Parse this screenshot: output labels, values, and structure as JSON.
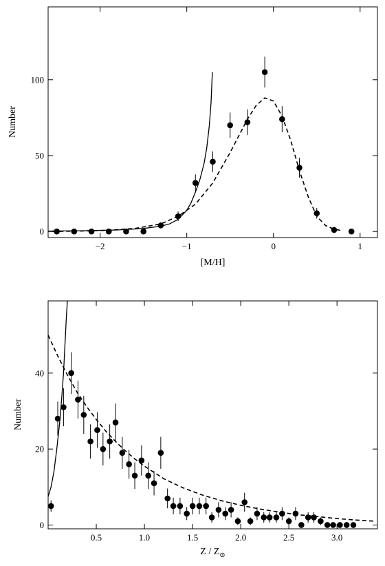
{
  "chart_data": [
    {
      "type": "scatter",
      "xlabel": "[M/H]",
      "ylabel": "Number",
      "xlim": [
        -2.6,
        1.2
      ],
      "ylim": [
        -4,
        148
      ],
      "xticks": [
        -2,
        -1,
        0,
        1
      ],
      "yticks": [
        0,
        50,
        100
      ],
      "series": [
        {
          "kind": "points",
          "x": [
            -2.5,
            -2.3,
            -2.1,
            -1.9,
            -1.7,
            -1.5,
            -1.3,
            -1.1,
            -0.9,
            -0.7,
            -0.5,
            -0.3,
            -0.1,
            0.1,
            0.3,
            0.5,
            0.7,
            0.9
          ],
          "y": [
            0,
            0,
            0,
            0,
            0,
            0,
            4,
            10,
            32,
            46,
            70,
            72,
            105,
            74,
            42,
            12,
            1,
            0
          ],
          "err": [
            0,
            0,
            0,
            0,
            0.5,
            0.8,
            2,
            3.2,
            5.6,
            6.8,
            8.4,
            8.5,
            10.2,
            8.6,
            6.5,
            3.5,
            1,
            0
          ]
        },
        {
          "kind": "line",
          "style": "solid",
          "x": [
            -2.6,
            -2.2,
            -1.8,
            -1.5,
            -1.3,
            -1.2,
            -1.1,
            -1.0,
            -0.95,
            -0.9,
            -0.85,
            -0.8,
            -0.77,
            -0.74,
            -0.72,
            -0.705
          ],
          "y": [
            0.3,
            0.5,
            1.0,
            2.0,
            3.5,
            5.0,
            8.0,
            14,
            19,
            26,
            34,
            45,
            55,
            70,
            85,
            105
          ]
        },
        {
          "kind": "line",
          "style": "dashed",
          "x": [
            -2.55,
            -2.2,
            -1.9,
            -1.6,
            -1.3,
            -1.1,
            -0.9,
            -0.7,
            -0.5,
            -0.3,
            -0.2,
            -0.1,
            0.0,
            0.1,
            0.2,
            0.3,
            0.4,
            0.5,
            0.6,
            0.7,
            0.8
          ],
          "y": [
            0,
            0.3,
            0.8,
            2,
            5,
            10,
            18,
            32,
            52,
            74,
            83,
            88,
            86,
            76,
            60,
            40,
            23,
            10,
            4,
            1.5,
            0.5
          ]
        }
      ]
    },
    {
      "type": "scatter",
      "xlabel": "Z / Z",
      "xlabel_sub": "⊙",
      "ylabel": "Number",
      "xlim": [
        0,
        3.42
      ],
      "ylim": [
        -1,
        59
      ],
      "xticks": [
        0.5,
        1.0,
        1.5,
        2.0,
        2.5,
        3.0
      ],
      "xtick_labels": [
        "0.5",
        "1.0",
        "1.5",
        "2.0",
        "2.5",
        "3.0"
      ],
      "yticks": [
        0,
        20,
        40
      ],
      "series": [
        {
          "kind": "points",
          "x": [
            0.03,
            0.1,
            0.16,
            0.24,
            0.31,
            0.37,
            0.44,
            0.51,
            0.57,
            0.64,
            0.7,
            0.77,
            0.84,
            0.9,
            0.97,
            1.04,
            1.1,
            1.17,
            1.24,
            1.3,
            1.37,
            1.44,
            1.5,
            1.57,
            1.64,
            1.7,
            1.77,
            1.84,
            1.9,
            1.97,
            2.04,
            2.1,
            2.17,
            2.24,
            2.3,
            2.37,
            2.43,
            2.5,
            2.57,
            2.63,
            2.7,
            2.76,
            2.83,
            2.9,
            2.96,
            3.03,
            3.1,
            3.17
          ],
          "y": [
            5,
            28,
            31,
            40,
            33,
            29,
            22,
            25,
            20,
            22,
            27,
            19,
            16,
            13,
            17,
            13,
            11,
            19,
            7,
            5,
            5,
            3,
            5,
            5,
            5,
            2,
            4,
            3,
            4,
            1,
            6,
            1,
            3,
            2,
            2,
            2,
            3,
            1,
            3,
            0,
            2,
            2,
            1,
            0,
            0,
            0,
            0,
            0
          ],
          "err": [
            1.5,
            4.5,
            5,
            5.5,
            5,
            5,
            4.5,
            4.7,
            4.3,
            4.5,
            5,
            4.2,
            3.8,
            3.5,
            4,
            3.5,
            3.2,
            4.2,
            2.6,
            2.2,
            2.2,
            1.7,
            2.2,
            2.2,
            2.2,
            1.4,
            2,
            1.7,
            2,
            1,
            2.5,
            1,
            1.7,
            1.4,
            1.4,
            1.4,
            1.7,
            1,
            1.7,
            0,
            1.4,
            1.4,
            1,
            0,
            0,
            0,
            0,
            0
          ]
        },
        {
          "kind": "line",
          "style": "solid",
          "x": [
            0.0,
            0.03,
            0.06,
            0.09,
            0.12,
            0.14,
            0.16,
            0.17,
            0.18,
            0.19,
            0.2
          ],
          "y": [
            7.5,
            10,
            14,
            20,
            27,
            33,
            40,
            45,
            50,
            55,
            60
          ]
        },
        {
          "kind": "line",
          "style": "dashed",
          "x": [
            0.0,
            0.1,
            0.2,
            0.3,
            0.4,
            0.5,
            0.6,
            0.7,
            0.8,
            0.9,
            1.0,
            1.2,
            1.4,
            1.6,
            1.8,
            2.0,
            2.2,
            2.4,
            2.6,
            2.8,
            3.0,
            3.2,
            3.4
          ],
          "y": [
            50,
            44.5,
            39.5,
            35,
            31.2,
            27.8,
            24.7,
            22,
            19.6,
            17.4,
            15.5,
            12.2,
            9.8,
            7.9,
            6.4,
            5.2,
            4.2,
            3.4,
            2.7,
            2.2,
            1.7,
            1.3,
            1.0
          ]
        }
      ]
    }
  ]
}
